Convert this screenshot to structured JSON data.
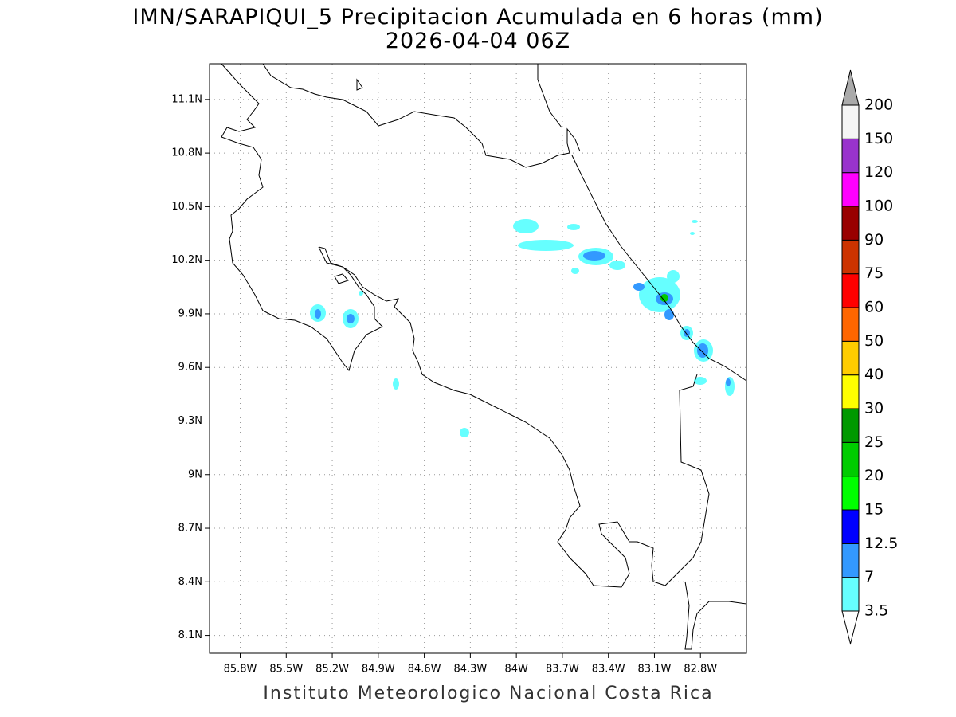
{
  "map": {
    "title": "IMN/SARAPIQUI_5 Precipitacion Acumulada en 6 horas (mm)",
    "subtitle": "2026-04-04 06Z",
    "footer": "Instituto Meteorologico Nacional Costa Rica",
    "xlim": [
      -86.0,
      -82.5
    ],
    "ylim": [
      8.0,
      11.3
    ],
    "grid": true,
    "xticks": [
      {
        "value": -85.8,
        "label": "85.8W"
      },
      {
        "value": -85.5,
        "label": "85.5W"
      },
      {
        "value": -85.2,
        "label": "85.2W"
      },
      {
        "value": -84.9,
        "label": "84.9W"
      },
      {
        "value": -84.6,
        "label": "84.6W"
      },
      {
        "value": -84.3,
        "label": "84.3W"
      },
      {
        "value": -84.0,
        "label": "84W"
      },
      {
        "value": -83.7,
        "label": "83.7W"
      },
      {
        "value": -83.4,
        "label": "83.4W"
      },
      {
        "value": -83.1,
        "label": "83.1W"
      },
      {
        "value": -82.8,
        "label": "82.8W"
      }
    ],
    "yticks": [
      {
        "value": 8.1,
        "label": "8.1N"
      },
      {
        "value": 8.4,
        "label": "8.4N"
      },
      {
        "value": 8.7,
        "label": "8.7N"
      },
      {
        "value": 9.0,
        "label": "9N"
      },
      {
        "value": 9.3,
        "label": "9.3N"
      },
      {
        "value": 9.6,
        "label": "9.6N"
      },
      {
        "value": 9.9,
        "label": "9.9N"
      },
      {
        "value": 10.2,
        "label": "10.2N"
      },
      {
        "value": 10.5,
        "label": "10.5N"
      },
      {
        "value": 10.8,
        "label": "10.8N"
      },
      {
        "value": 11.1,
        "label": "11.1N"
      }
    ],
    "colorbar": {
      "levels": [
        3.5,
        7,
        12.5,
        15,
        20,
        25,
        30,
        40,
        50,
        60,
        75,
        90,
        100,
        120,
        150,
        200
      ],
      "colors": [
        "#66ffff",
        "#3399ff",
        "#0000ff",
        "#00ff00",
        "#00cc00",
        "#009900",
        "#ffff00",
        "#ffcc00",
        "#ff6600",
        "#ff0000",
        "#cc3300",
        "#990000",
        "#ff00ff",
        "#9933cc",
        "#f5f5f5"
      ],
      "under_color": "#ffffff",
      "over_color": "#aaaaaa"
    }
  }
}
